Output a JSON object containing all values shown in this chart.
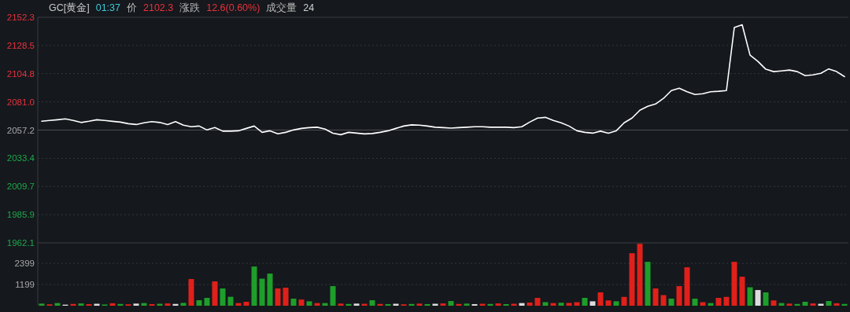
{
  "chart_data": [
    {
      "type": "line",
      "title": "GC[黄金]",
      "annotations": [
        "01:37",
        "价",
        "2102.3",
        "涨跌",
        "12.6(0.60%)",
        "成交量",
        "24"
      ],
      "categories": [
        null,
        null,
        null,
        null,
        null,
        null,
        null,
        null,
        null,
        null,
        null,
        null,
        null,
        null,
        null,
        null,
        null,
        null,
        null,
        null,
        null,
        null,
        null,
        null,
        null,
        null,
        null,
        null,
        null,
        null,
        null,
        null,
        null,
        null,
        null,
        null,
        null,
        null,
        null,
        null,
        null,
        null,
        null,
        null,
        null,
        null,
        null,
        null,
        null,
        null,
        null,
        null,
        null,
        null,
        null,
        null,
        null,
        null,
        null,
        null,
        null,
        null,
        null,
        null,
        null,
        null,
        null,
        null,
        null,
        null,
        null,
        null,
        null,
        null,
        null,
        null,
        null,
        null,
        null,
        null,
        null,
        null,
        null,
        null,
        null,
        null,
        null,
        null,
        null,
        null,
        null,
        null,
        null,
        null,
        null,
        null,
        null,
        null,
        null,
        null,
        null,
        null,
        null
      ],
      "series": [
        {
          "color": "#ffffff",
          "values": [
            2064.7,
            2065.3,
            2065.9,
            2066.6,
            2065.3,
            2063.6,
            2064.6,
            2065.9,
            2065.3,
            2064.6,
            2063.9,
            2062.6,
            2061.9,
            2063.3,
            2064.3,
            2063.6,
            2061.9,
            2064.3,
            2061.3,
            2060.0,
            2060.6,
            2057.3,
            2059.3,
            2056.3,
            2056.3,
            2056.6,
            2058.6,
            2060.6,
            2055.3,
            2056.6,
            2054.0,
            2055.3,
            2057.3,
            2058.6,
            2059.3,
            2059.6,
            2058.0,
            2054.6,
            2053.3,
            2055.3,
            2054.6,
            2054.0,
            2054.3,
            2055.3,
            2056.6,
            2058.6,
            2060.6,
            2061.6,
            2061.3,
            2060.6,
            2059.6,
            2059.3,
            2058.9,
            2059.3,
            2059.6,
            2060.0,
            2060.0,
            2059.6,
            2059.6,
            2059.6,
            2059.3,
            2060.0,
            2063.9,
            2067.3,
            2067.9,
            2065.3,
            2063.3,
            2060.6,
            2056.6,
            2055.3,
            2054.6,
            2056.3,
            2054.6,
            2056.6,
            2063.3,
            2067.3,
            2073.9,
            2077.2,
            2079.2,
            2083.9,
            2090.5,
            2092.5,
            2089.5,
            2087.2,
            2087.9,
            2089.5,
            2089.9,
            2090.5,
            2143.7,
            2146.0,
            2120.4,
            2115.1,
            2108.5,
            2106.5,
            2107.1,
            2107.8,
            2106.5,
            2103.1,
            2103.8,
            2105.1,
            2108.8,
            2106.5,
            2102.3
          ]
        }
      ],
      "ylim": [
        1962.1,
        2152.3
      ],
      "yticks": [
        2152.3,
        2128.5,
        2104.8,
        {
          "value": 2081,
          "label": "2081.0"
        },
        2057.2,
        2033.4,
        2009.7,
        1985.9,
        1962.1
      ],
      "ref_lines": [
        {
          "axis": "y",
          "value": 2057.2,
          "color": "#4a4d52"
        }
      ],
      "grid": "y",
      "tick_labels": "y"
    },
    {
      "type": "bar",
      "categories": [
        null,
        null,
        null,
        null,
        null,
        null,
        null,
        null,
        null,
        null,
        null,
        null,
        null,
        null,
        null,
        null,
        null,
        null,
        null,
        null,
        null,
        null,
        null,
        null,
        null,
        null,
        null,
        null,
        null,
        null,
        null,
        null,
        null,
        null,
        null,
        null,
        null,
        null,
        null,
        null,
        null,
        null,
        null,
        null,
        null,
        null,
        null,
        null,
        null,
        null,
        null,
        null,
        null,
        null,
        null,
        null,
        null,
        null,
        null,
        null,
        null,
        null,
        null,
        null,
        null,
        null,
        null,
        null,
        null,
        null,
        null,
        null,
        null,
        null,
        null,
        null,
        null,
        null,
        null,
        null,
        null,
        null,
        null,
        null,
        null,
        null,
        null,
        null,
        null,
        null,
        null,
        null,
        null,
        null,
        null,
        null,
        null,
        null,
        null,
        null,
        null,
        null,
        null
      ],
      "values": [
        120,
        80,
        150,
        60,
        100,
        130,
        90,
        110,
        70,
        140,
        100,
        80,
        120,
        150,
        90,
        110,
        130,
        100,
        160,
        1510,
        311,
        444,
        1376,
        977,
        506,
        150,
        222,
        2220,
        1532,
        1820,
        977,
        1021,
        400,
        350,
        250,
        150,
        150,
        1110,
        120,
        100,
        120,
        110,
        311,
        100,
        90,
        110,
        80,
        100,
        120,
        90,
        110,
        130,
        266,
        100,
        120,
        90,
        110,
        100,
        130,
        90,
        110,
        150,
        180,
        444,
        200,
        150,
        170,
        160,
        200,
        444,
        250,
        755,
        300,
        250,
        500,
        2975,
        3508,
        2486,
        977,
        600,
        400,
        1110,
        2176,
        400,
        200,
        150,
        444,
        500,
        2486,
        1643,
        1043,
        888,
        755,
        300,
        150,
        120,
        100,
        222,
        130,
        110,
        266,
        140,
        100
      ],
      "colors": [
        "#1e9e2a",
        "#e0201a",
        "#1e9e2a",
        "#dcdcdc",
        "#e0201a",
        "#1e9e2a",
        "#e0201a",
        "#dcdcdc",
        "#1e9e2a",
        "#e0201a",
        "#1e9e2a",
        "#e0201a",
        "#dcdcdc",
        "#1e9e2a",
        "#e0201a",
        "#1e9e2a",
        "#e0201a",
        "#dcdcdc",
        "#1e9e2a",
        "#e0201a",
        "#1e9e2a",
        "#1e9e2a",
        "#e0201a",
        "#1e9e2a",
        "#1e9e2a",
        "#e0201a",
        "#e0201a",
        "#1e9e2a",
        "#1e9e2a",
        "#1e9e2a",
        "#e0201a",
        "#e0201a",
        "#1e9e2a",
        "#e0201a",
        "#1e9e2a",
        "#e0201a",
        "#1e9e2a",
        "#1e9e2a",
        "#e0201a",
        "#1e9e2a",
        "#dcdcdc",
        "#e0201a",
        "#1e9e2a",
        "#e0201a",
        "#1e9e2a",
        "#dcdcdc",
        "#e0201a",
        "#1e9e2a",
        "#e0201a",
        "#1e9e2a",
        "#dcdcdc",
        "#e0201a",
        "#1e9e2a",
        "#e0201a",
        "#1e9e2a",
        "#dcdcdc",
        "#e0201a",
        "#1e9e2a",
        "#e0201a",
        "#1e9e2a",
        "#e0201a",
        "#dcdcdc",
        "#e0201a",
        "#e0201a",
        "#1e9e2a",
        "#e0201a",
        "#1e9e2a",
        "#e0201a",
        "#e0201a",
        "#1e9e2a",
        "#dcdcdc",
        "#e0201a",
        "#e0201a",
        "#1e9e2a",
        "#e0201a",
        "#e0201a",
        "#e0201a",
        "#1e9e2a",
        "#e0201a",
        "#e0201a",
        "#1e9e2a",
        "#e0201a",
        "#e0201a",
        "#1e9e2a",
        "#e0201a",
        "#1e9e2a",
        "#e0201a",
        "#e0201a",
        "#e0201a",
        "#e0201a",
        "#1e9e2a",
        "#dcdcdc",
        "#1e9e2a",
        "#e0201a",
        "#1e9e2a",
        "#e0201a",
        "#1e9e2a",
        "#1e9e2a",
        "#e0201a",
        "#dcdcdc",
        "#1e9e2a",
        "#e0201a",
        "#1e9e2a"
      ],
      "ylim": [
        0,
        3560
      ],
      "yticks": [
        1199,
        2399
      ],
      "grid": "y",
      "tick_labels": "y"
    }
  ]
}
